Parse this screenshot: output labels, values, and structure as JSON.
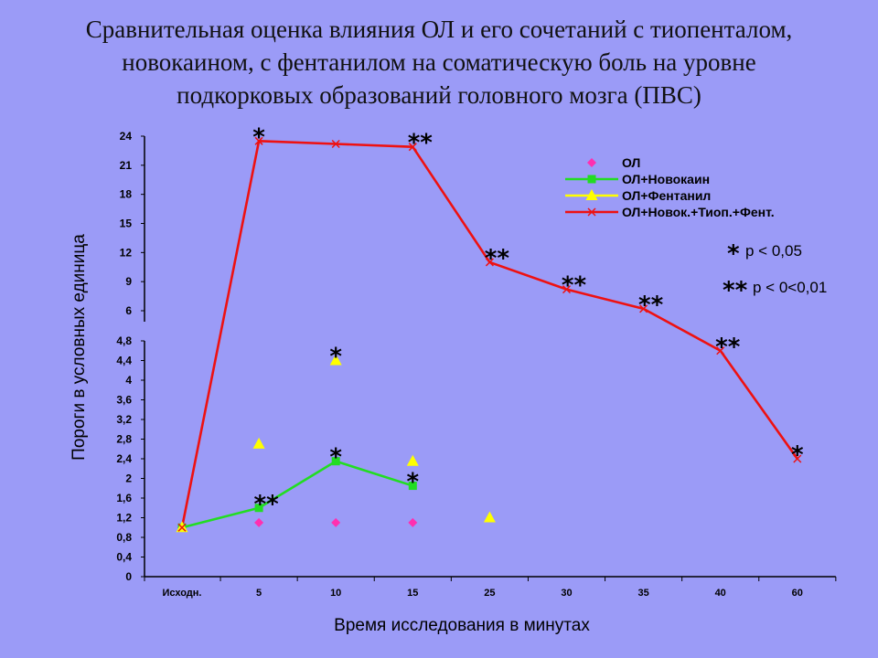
{
  "title_lines": [
    "Сравнительная оценка влияния ОЛ и его сочетаний с тиопенталом,",
    "новокаином, с фентанилом на соматическую боль на уровне",
    "подкорковых образований головного мозга (ПВС)"
  ],
  "chart_data": {
    "type": "line",
    "title": "Сравнительная оценка влияния ОЛ и его сочетаний с тиопенталом, новокаином, с фентанилом на соматическую боль на уровне подкорковых образований головного мозга (ПВС)",
    "xlabel": "Время исследования в минутах",
    "ylabel": "Пороги в условных единица",
    "categories": [
      "Исходн.",
      "5",
      "10",
      "15",
      "25",
      "30",
      "35",
      "40",
      "60"
    ],
    "y_axis_broken": true,
    "ylim_lower": [
      0,
      4.8
    ],
    "ylim_upper": [
      6,
      24
    ],
    "yticks_lower": [
      "0",
      "0,4",
      "0,8",
      "1,2",
      "1,6",
      "2",
      "2,4",
      "2,8",
      "3,2",
      "3,6",
      "4",
      "4,4",
      "4,8"
    ],
    "yticks_upper": [
      "6",
      "9",
      "12",
      "15",
      "18",
      "21",
      "24"
    ],
    "legend_position": "top-right",
    "series": [
      {
        "name": "ОЛ",
        "color": "#ff2fb0",
        "marker": "diamond",
        "line": false,
        "values": [
          1.0,
          1.1,
          1.1,
          1.1,
          null,
          null,
          null,
          null,
          null
        ],
        "annotations": [
          "",
          "",
          "",
          "",
          "",
          "",
          "",
          "",
          ""
        ]
      },
      {
        "name": "ОЛ+Новокаин",
        "color": "#22dd22",
        "marker": "square",
        "line": true,
        "values": [
          1.0,
          1.4,
          2.35,
          1.85,
          null,
          null,
          null,
          null,
          null
        ],
        "annotations": [
          "",
          "**",
          "*",
          "*",
          "",
          "",
          "",
          "",
          ""
        ]
      },
      {
        "name": "ОЛ+Фентанил",
        "color": "#ffff00",
        "marker": "triangle",
        "line": false,
        "values": [
          1.0,
          2.7,
          4.4,
          2.35,
          1.2,
          null,
          null,
          null,
          null
        ],
        "annotations": [
          "",
          "",
          "*",
          "",
          "",
          "",
          "",
          "",
          ""
        ]
      },
      {
        "name": "ОЛ+Новок.+Тиоп.+Фент.",
        "color": "#ee1111",
        "marker": "x",
        "line": true,
        "values": [
          1.0,
          23.5,
          23.2,
          22.9,
          11.0,
          8.2,
          6.2,
          4.6,
          2.4
        ],
        "annotations": [
          "",
          "*",
          "",
          "**",
          "**",
          "**",
          "**",
          "**",
          "*"
        ]
      }
    ],
    "significance_legend": [
      {
        "symbol": "*",
        "text": "р < 0,05"
      },
      {
        "symbol": "**",
        "text": "р < 0<0,01"
      }
    ]
  }
}
